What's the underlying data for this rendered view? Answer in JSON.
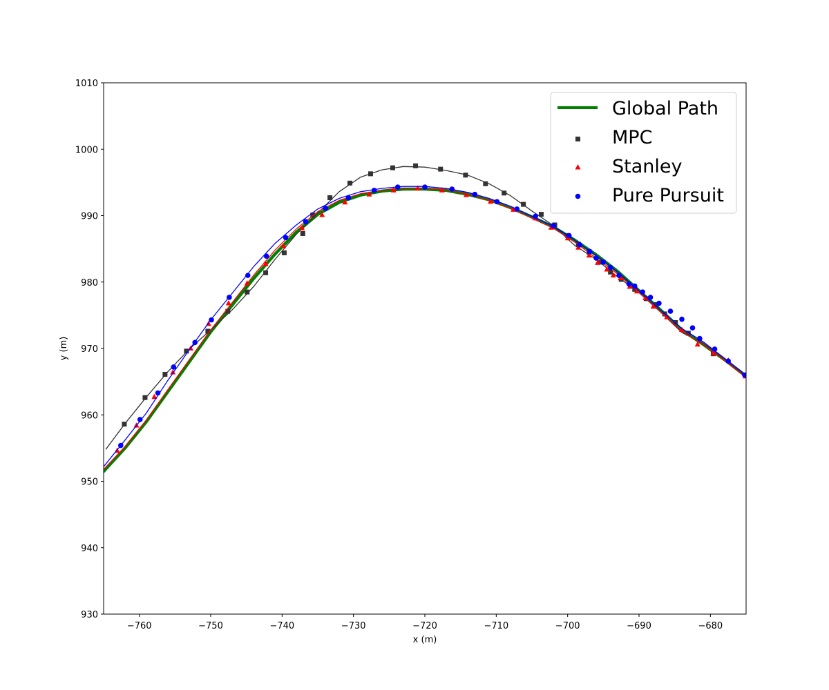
{
  "chart_data": {
    "type": "line",
    "title": "",
    "xlabel": "x (m)",
    "ylabel": "y (m)",
    "xlim": [
      -765,
      -675
    ],
    "ylim": [
      930,
      1010
    ],
    "x_ticks": [
      -760,
      -750,
      -740,
      -730,
      -720,
      -710,
      -700,
      -690,
      -680
    ],
    "y_ticks": [
      930,
      940,
      950,
      960,
      970,
      980,
      990,
      1000,
      1010
    ],
    "grid": false,
    "legend_position": "top-right",
    "legend": [
      "Global Path",
      "MPC",
      "Stanley",
      "Pure Pursuit"
    ],
    "series": [
      {
        "name": "Global Path",
        "style": "line",
        "color": "#008000",
        "points": [
          [
            -765,
            951.5
          ],
          [
            -762,
            955
          ],
          [
            -759,
            959
          ],
          [
            -756,
            963.5
          ],
          [
            -753,
            968
          ],
          [
            -750,
            972.5
          ],
          [
            -747,
            976.5
          ],
          [
            -744,
            980.5
          ],
          [
            -741,
            984.2
          ],
          [
            -738,
            987.5
          ],
          [
            -735,
            990.2
          ],
          [
            -732,
            992
          ],
          [
            -729,
            993.1
          ],
          [
            -726,
            993.7
          ],
          [
            -723,
            994
          ],
          [
            -720,
            994
          ],
          [
            -717,
            993.8
          ],
          [
            -714,
            993.2
          ],
          [
            -711,
            992.4
          ],
          [
            -708,
            991.2
          ],
          [
            -705,
            989.8
          ],
          [
            -702,
            988.3
          ],
          [
            -699,
            986.3
          ],
          [
            -696,
            984.1
          ],
          [
            -693,
            981.6
          ],
          [
            -690,
            978.7
          ],
          [
            -687,
            975.8
          ],
          [
            -684,
            972.8
          ],
          [
            -681,
            970.6
          ],
          [
            -678,
            968.3
          ],
          [
            -675,
            965.8
          ]
        ]
      },
      {
        "name": "MPC",
        "style": "line+marker",
        "marker": "square",
        "color": "#333333",
        "line_points": [
          [
            -764.7,
            954.8
          ],
          [
            -762,
            958.7
          ],
          [
            -759,
            962.7
          ],
          [
            -756,
            966.5
          ],
          [
            -753,
            969.9
          ],
          [
            -750,
            972.8
          ],
          [
            -747,
            975.8
          ],
          [
            -744,
            979.3
          ],
          [
            -741,
            983.4
          ],
          [
            -738,
            987.2
          ],
          [
            -735,
            990.4
          ],
          [
            -732,
            993.6
          ],
          [
            -729,
            995.8
          ],
          [
            -726,
            996.9
          ],
          [
            -723,
            997.4
          ],
          [
            -720,
            997.3
          ],
          [
            -717,
            996.8
          ],
          [
            -714,
            996.1
          ],
          [
            -711,
            994.8
          ],
          [
            -708,
            993
          ],
          [
            -705,
            990.7
          ],
          [
            -702,
            988.5
          ],
          [
            -699,
            985.5
          ],
          [
            -696,
            983.4
          ],
          [
            -693,
            980.8
          ],
          [
            -690,
            978.4
          ],
          [
            -687,
            975.5
          ],
          [
            -684,
            972.4
          ],
          [
            -681,
            970.8
          ],
          [
            -678,
            968.3
          ],
          [
            -675,
            965.8
          ]
        ],
        "markers": [
          [
            -762.1,
            958.6
          ],
          [
            -759.2,
            962.6
          ],
          [
            -756.4,
            966.1
          ],
          [
            -753.4,
            969.6
          ],
          [
            -750.4,
            972.6
          ],
          [
            -747.6,
            975.6
          ],
          [
            -744.9,
            978.5
          ],
          [
            -742.3,
            981.4
          ],
          [
            -739.7,
            984.4
          ],
          [
            -737.1,
            987.3
          ],
          [
            -735.7,
            990.1
          ],
          [
            -733.3,
            992.7
          ],
          [
            -730.5,
            994.9
          ],
          [
            -727.6,
            996.3
          ],
          [
            -724.5,
            997.2
          ],
          [
            -721.3,
            997.5
          ],
          [
            -717.8,
            997
          ],
          [
            -714.3,
            996.1
          ],
          [
            -711.5,
            994.8
          ],
          [
            -708.9,
            993.4
          ],
          [
            -706.2,
            991.7
          ],
          [
            -703.7,
            990.2
          ],
          [
            -701.8,
            988.6
          ],
          [
            -700,
            987
          ],
          [
            -698.5,
            985.7
          ],
          [
            -697,
            984.5
          ],
          [
            -695.5,
            983
          ],
          [
            -694,
            981.5
          ],
          [
            -692.5,
            980.4
          ],
          [
            -690.6,
            978.9
          ],
          [
            -689,
            977.5
          ],
          [
            -687.6,
            976.6
          ],
          [
            -686.4,
            975.2
          ],
          [
            -684.9,
            973.9
          ],
          [
            -683.1,
            972.3
          ],
          [
            -679.6,
            969.2
          ]
        ]
      },
      {
        "name": "Stanley",
        "style": "line+marker",
        "marker": "triangle",
        "color": "#ff0000",
        "line_points": [
          [
            -765,
            951.8
          ],
          [
            -762,
            955.2
          ],
          [
            -759,
            959.2
          ],
          [
            -756,
            963.8
          ],
          [
            -753,
            968.3
          ],
          [
            -750,
            972.8
          ],
          [
            -747,
            976.9
          ],
          [
            -744,
            981
          ],
          [
            -741,
            984.8
          ],
          [
            -738,
            988
          ],
          [
            -735,
            990.6
          ],
          [
            -732,
            992.3
          ],
          [
            -729,
            993.3
          ],
          [
            -726,
            993.8
          ],
          [
            -723,
            994.1
          ],
          [
            -720,
            994.1
          ],
          [
            -717,
            993.9
          ],
          [
            -714,
            993.2
          ],
          [
            -711,
            992.3
          ],
          [
            -708,
            991.1
          ],
          [
            -705,
            989.6
          ],
          [
            -702,
            988.1
          ],
          [
            -699,
            986
          ],
          [
            -696,
            983.6
          ],
          [
            -693,
            981.2
          ],
          [
            -690,
            978.4
          ],
          [
            -687,
            975.5
          ],
          [
            -684,
            972.6
          ],
          [
            -681,
            970.6
          ],
          [
            -678,
            968.2
          ],
          [
            -675,
            965.6
          ]
        ],
        "markers": [
          [
            -763.1,
            954.6
          ],
          [
            -760.4,
            958.4
          ],
          [
            -757.9,
            962.7
          ],
          [
            -755.3,
            966.4
          ],
          [
            -752.8,
            970
          ],
          [
            -750.3,
            973.7
          ],
          [
            -747.5,
            976.8
          ],
          [
            -744.9,
            979.8
          ],
          [
            -742.3,
            982.7
          ],
          [
            -739.8,
            985.4
          ],
          [
            -737.2,
            988.1
          ],
          [
            -734.4,
            990.1
          ],
          [
            -731.2,
            992
          ],
          [
            -727.8,
            993.2
          ],
          [
            -724.4,
            993.8
          ],
          [
            -721,
            994.1
          ],
          [
            -717.6,
            993.8
          ],
          [
            -714.2,
            993.1
          ],
          [
            -710.8,
            992.1
          ],
          [
            -707.6,
            990.9
          ],
          [
            -704.5,
            989.6
          ],
          [
            -702.3,
            988.2
          ],
          [
            -700,
            986.6
          ],
          [
            -698.5,
            985.2
          ],
          [
            -697,
            984
          ],
          [
            -695.8,
            982.9
          ],
          [
            -694.5,
            981.9
          ],
          [
            -693.6,
            981
          ],
          [
            -692.6,
            980.6
          ],
          [
            -691.3,
            979.3
          ],
          [
            -690.3,
            978.6
          ],
          [
            -689.1,
            977.6
          ],
          [
            -688,
            976.3
          ],
          [
            -686.1,
            974.7
          ],
          [
            -684,
            972.8
          ],
          [
            -681.8,
            970.6
          ],
          [
            -679.6,
            969.3
          ],
          [
            -677.5,
            968.2
          ],
          [
            -675.1,
            965.8
          ]
        ]
      },
      {
        "name": "Pure Pursuit",
        "style": "line+marker",
        "marker": "circle",
        "color": "#0000ff",
        "line_points": [
          [
            -765,
            952.2
          ],
          [
            -762,
            956.2
          ],
          [
            -759,
            960.3
          ],
          [
            -756,
            965.2
          ],
          [
            -753,
            969.8
          ],
          [
            -750,
            974.3
          ],
          [
            -747,
            978.3
          ],
          [
            -744,
            982.3
          ],
          [
            -741,
            985.8
          ],
          [
            -738,
            988.6
          ],
          [
            -735,
            991
          ],
          [
            -732,
            992.6
          ],
          [
            -729,
            993.6
          ],
          [
            -726,
            994.1
          ],
          [
            -723,
            994.4
          ],
          [
            -720,
            994.4
          ],
          [
            -717,
            994.1
          ],
          [
            -714,
            993.5
          ],
          [
            -711,
            992.6
          ],
          [
            -708,
            991.4
          ],
          [
            -705,
            989.9
          ],
          [
            -702,
            988.4
          ],
          [
            -699,
            986.3
          ],
          [
            -696,
            984
          ],
          [
            -693,
            981.5
          ],
          [
            -690,
            978.7
          ],
          [
            -687,
            975.8
          ],
          [
            -684,
            973
          ],
          [
            -681,
            971
          ],
          [
            -678,
            968.5
          ],
          [
            -675,
            966
          ]
        ],
        "markers": [
          [
            -762.6,
            955.4
          ],
          [
            -759.9,
            959.3
          ],
          [
            -757.4,
            963.3
          ],
          [
            -755.2,
            967.2
          ],
          [
            -752.2,
            970.9
          ],
          [
            -749.9,
            974.3
          ],
          [
            -747.4,
            977.7
          ],
          [
            -744.8,
            981
          ],
          [
            -742.2,
            983.9
          ],
          [
            -739.5,
            986.7
          ],
          [
            -736.7,
            989.1
          ],
          [
            -733.9,
            991.1
          ],
          [
            -730.7,
            992.7
          ],
          [
            -727.1,
            993.8
          ],
          [
            -723.8,
            994.3
          ],
          [
            -720,
            994.3
          ],
          [
            -716.2,
            994
          ],
          [
            -713,
            993.2
          ],
          [
            -709.9,
            992.1
          ],
          [
            -707.1,
            991
          ],
          [
            -704.5,
            989.9
          ],
          [
            -702,
            988.5
          ],
          [
            -699.8,
            987
          ],
          [
            -698.3,
            985.6
          ],
          [
            -696.9,
            984.6
          ],
          [
            -696,
            983.6
          ],
          [
            -695,
            983
          ],
          [
            -694,
            982.2
          ],
          [
            -692.8,
            981
          ],
          [
            -691.4,
            979.7
          ],
          [
            -690.6,
            979.4
          ],
          [
            -689.5,
            978.5
          ],
          [
            -688.4,
            977.7
          ],
          [
            -687.2,
            976.8
          ],
          [
            -685.6,
            975.6
          ],
          [
            -684,
            974.4
          ],
          [
            -682.5,
            973.1
          ],
          [
            -681.5,
            971.5
          ],
          [
            -679.4,
            969.9
          ],
          [
            -677.5,
            968.1
          ],
          [
            -675.2,
            966
          ]
        ]
      }
    ]
  }
}
